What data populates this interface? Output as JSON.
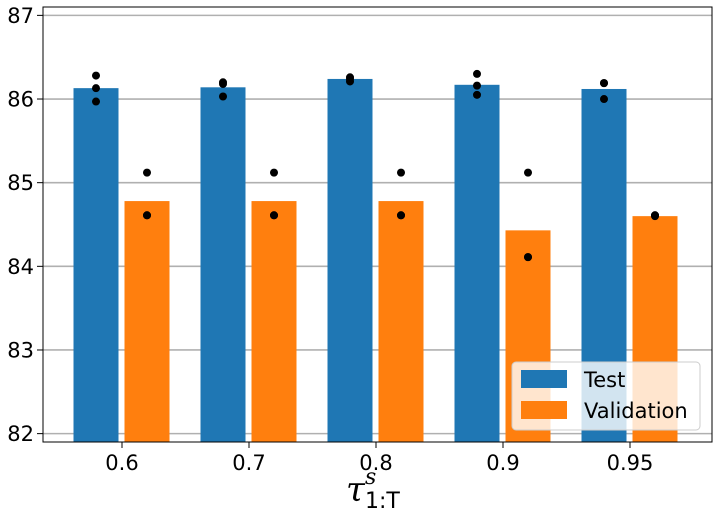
{
  "chart_data": {
    "type": "bar",
    "categories": [
      "0.6",
      "0.7",
      "0.8",
      "0.9",
      "0.95"
    ],
    "series": [
      {
        "name": "Test",
        "color": "#1f77b4",
        "values": [
          86.13,
          86.14,
          86.24,
          86.17,
          86.12
        ],
        "points": [
          [
            86.28,
            86.13,
            85.97
          ],
          [
            86.2,
            86.18,
            86.03
          ],
          [
            86.26,
            86.24,
            86.21
          ],
          [
            86.3,
            86.16,
            86.05
          ],
          [
            86.19,
            86.19,
            86.0
          ]
        ]
      },
      {
        "name": "Validation",
        "color": "#ff7f0e",
        "values": [
          84.78,
          84.78,
          84.78,
          84.43,
          84.6
        ],
        "points": [
          [
            85.12,
            84.61,
            84.61
          ],
          [
            85.12,
            84.61,
            84.61
          ],
          [
            85.12,
            84.61,
            84.61
          ],
          [
            85.12,
            84.11,
            84.11
          ],
          [
            84.61,
            84.61,
            84.6
          ]
        ]
      }
    ],
    "point_color": "#000000",
    "ylim": [
      81.9,
      87.1
    ],
    "yticks": [
      "82",
      "83",
      "84",
      "85",
      "86",
      "87"
    ],
    "ytick_values": [
      82,
      83,
      84,
      85,
      86,
      87
    ],
    "grid": "horizontal",
    "title": "",
    "ylabel": "",
    "xlabel": {
      "base": "τ",
      "superscript": "s",
      "subscript": "1:T"
    },
    "legend": {
      "position": "lower-right",
      "entries": [
        "Test",
        "Validation"
      ]
    }
  }
}
